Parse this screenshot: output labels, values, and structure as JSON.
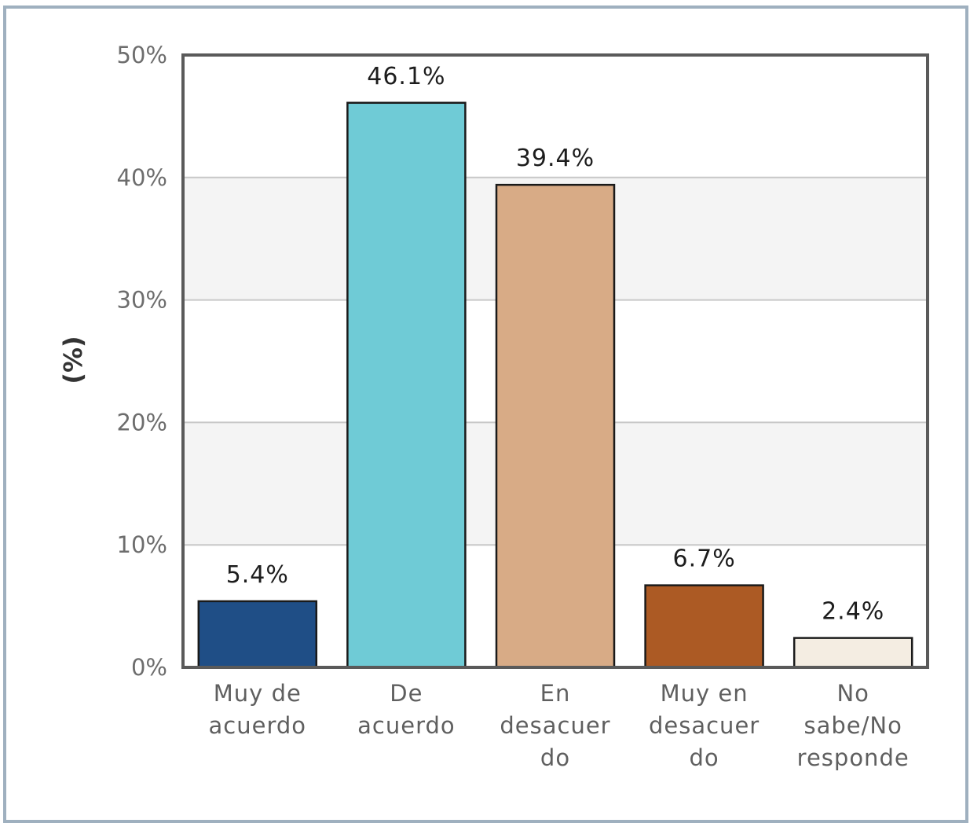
{
  "chart_data": {
    "type": "bar",
    "categories": [
      [
        "Muy de",
        "acuerdo"
      ],
      [
        "De",
        "acuerdo"
      ],
      [
        "En",
        "desacuer",
        "do"
      ],
      [
        "Muy en",
        "desacuer",
        "do"
      ],
      [
        "No",
        "sabe/No",
        "responde"
      ]
    ],
    "values": [
      5.4,
      46.1,
      39.4,
      6.7,
      2.4
    ],
    "data_labels": [
      "5.4%",
      "46.1%",
      "39.4%",
      "6.7%",
      "2.4%"
    ],
    "colors": [
      "#1f4e86",
      "#6fcbd6",
      "#d8ab86",
      "#ac5a24",
      "#f4ede2"
    ],
    "ylabel": "(%)",
    "ylim": [
      0,
      50
    ],
    "yticks": [
      0,
      10,
      20,
      30,
      40,
      50
    ],
    "ytick_labels": [
      "0%",
      "10%",
      "20%",
      "30%",
      "40%",
      "50%"
    ],
    "grid": true,
    "band_colors": [
      "#ffffff",
      "#f4f4f4"
    ],
    "frame_color": "#5a5a5a"
  }
}
